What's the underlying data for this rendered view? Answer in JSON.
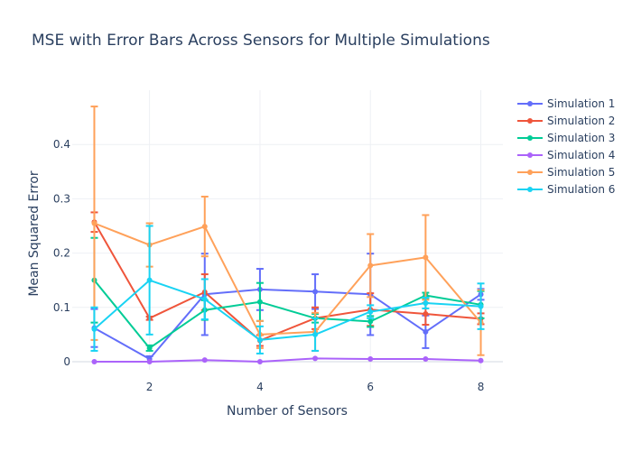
{
  "chart_data": {
    "type": "line",
    "title": "MSE with Error Bars Across Sensors for Multiple Simulations",
    "xlabel": "Number of Sensors",
    "ylabel": "Mean Squared Error",
    "x": [
      1,
      2,
      3,
      4,
      5,
      6,
      7,
      8
    ],
    "xticks": [
      2,
      4,
      6,
      8
    ],
    "xlim": [
      0.6,
      8.4
    ],
    "yticks": [
      0,
      0.1,
      0.2,
      0.3,
      0.4
    ],
    "ylim": [
      -0.015,
      0.5
    ],
    "grid": true,
    "legend_position": "top-right",
    "series": [
      {
        "name": "Simulation 1",
        "color": "#636efa",
        "values": [
          0.062,
          0.005,
          0.124,
          0.133,
          0.129,
          0.124,
          0.055,
          0.124
        ],
        "errors": [
          0.035,
          0.005,
          0.075,
          0.038,
          0.032,
          0.075,
          0.03,
          0.01
        ]
      },
      {
        "name": "Simulation 2",
        "color": "#ef553b",
        "values": [
          0.257,
          0.08,
          0.128,
          0.039,
          0.08,
          0.096,
          0.088,
          0.079
        ],
        "errors": [
          0.018,
          0.003,
          0.033,
          0.01,
          0.02,
          0.03,
          0.02,
          0.01
        ]
      },
      {
        "name": "Simulation 3",
        "color": "#00cc96",
        "values": [
          0.15,
          0.025,
          0.095,
          0.11,
          0.08,
          0.074,
          0.122,
          0.105
        ],
        "errors": [
          0.078,
          0.005,
          0.018,
          0.035,
          0.008,
          0.01,
          0.005,
          0.025
        ]
      },
      {
        "name": "Simulation 4",
        "color": "#ab63fa",
        "values": [
          0.0,
          0.0,
          0.003,
          0.0,
          0.006,
          0.005,
          0.005,
          0.002
        ],
        "errors": [
          0.0,
          0.0,
          0.0,
          0.0,
          0.0,
          0.0,
          0.0,
          0.0
        ]
      },
      {
        "name": "Simulation 5",
        "color": "#ffa15a",
        "values": [
          0.255,
          0.215,
          0.249,
          0.05,
          0.055,
          0.177,
          0.192,
          0.072
        ],
        "errors": [
          0.215,
          0.04,
          0.055,
          0.025,
          0.035,
          0.058,
          0.078,
          0.06
        ]
      },
      {
        "name": "Simulation 6",
        "color": "#19d3f3",
        "values": [
          0.06,
          0.15,
          0.115,
          0.04,
          0.05,
          0.092,
          0.108,
          0.102
        ],
        "errors": [
          0.04,
          0.1,
          0.037,
          0.025,
          0.03,
          0.012,
          0.01,
          0.042
        ]
      }
    ]
  }
}
